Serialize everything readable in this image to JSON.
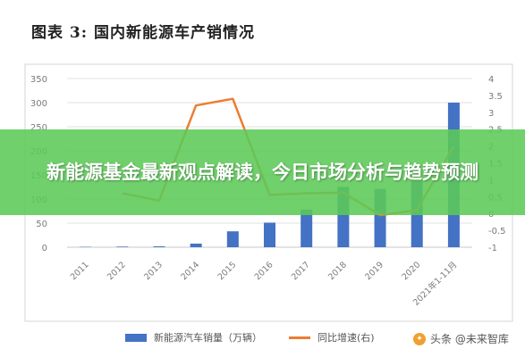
{
  "figure_title": "图表 3: 国内新能源车产销情况",
  "banner": "新能源基金最新观点解读，今日市场分析与趋势预测",
  "watermark": "头条 @未来智库",
  "colors": {
    "bar": "#4472c4",
    "line": "#ed7d31",
    "banner": "#5cc958"
  },
  "chart_data": {
    "type": "bar",
    "categories": [
      "2011",
      "2012",
      "2013",
      "2014",
      "2015",
      "2016",
      "2017",
      "2018",
      "2019",
      "2020",
      "2021年1-11月"
    ],
    "y_left": {
      "ticks": [
        0,
        50,
        100,
        150,
        200,
        250,
        300,
        350
      ],
      "range": [
        0,
        350
      ]
    },
    "y_right": {
      "ticks": [
        -1,
        -0.5,
        0,
        0.5,
        1,
        1.5,
        2,
        2.5,
        3,
        3.5,
        4
      ],
      "range": [
        -1,
        4
      ]
    },
    "grid": true,
    "legend_position": "bottom",
    "series": [
      {
        "name": "新能源汽车销量（万辆）",
        "type": "bar",
        "axis": "left",
        "values": [
          0.8,
          1.3,
          1.8,
          7.5,
          33,
          51,
          78,
          125,
          121,
          137,
          300
        ]
      },
      {
        "name": "同比增速(右)",
        "type": "line",
        "axis": "right",
        "values": [
          null,
          0.6,
          0.38,
          3.2,
          3.4,
          0.55,
          0.6,
          0.62,
          -0.05,
          0.1,
          2
        ]
      }
    ]
  }
}
